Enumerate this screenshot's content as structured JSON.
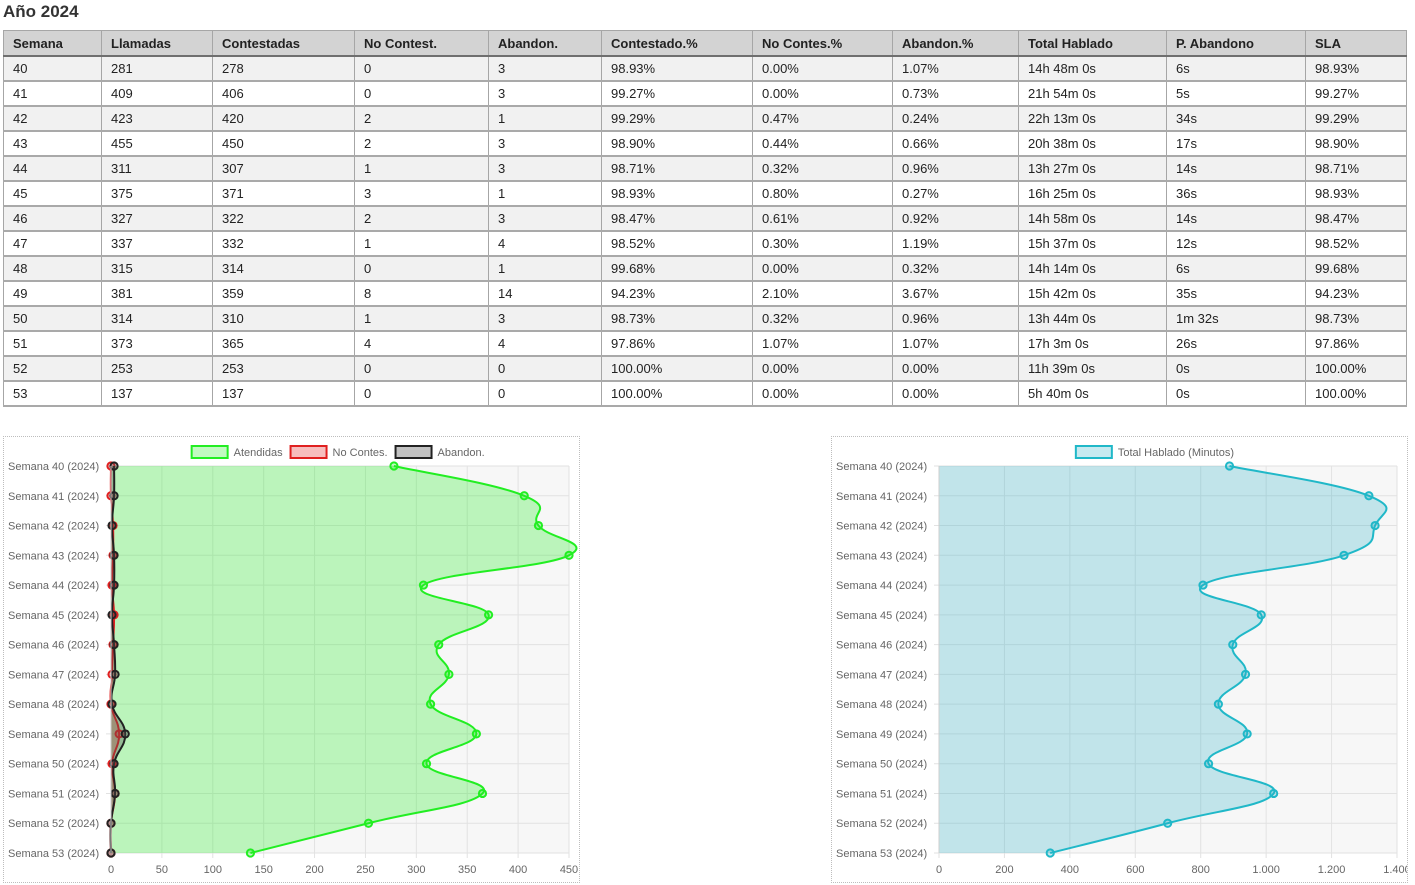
{
  "title": "Año 2024",
  "table": {
    "headers": [
      "Semana",
      "Llamadas",
      "Contestadas",
      "No Contest.",
      "Abandon.",
      "Contestado.%",
      "No Contes.%",
      "Abandon.%",
      "Total Hablado",
      "P. Abandono",
      "SLA"
    ],
    "rows": [
      [
        "40",
        "281",
        "278",
        "0",
        "3",
        "98.93%",
        "0.00%",
        "1.07%",
        "14h 48m 0s",
        "6s",
        "98.93%"
      ],
      [
        "41",
        "409",
        "406",
        "0",
        "3",
        "99.27%",
        "0.00%",
        "0.73%",
        "21h 54m 0s",
        "5s",
        "99.27%"
      ],
      [
        "42",
        "423",
        "420",
        "2",
        "1",
        "99.29%",
        "0.47%",
        "0.24%",
        "22h 13m 0s",
        "34s",
        "99.29%"
      ],
      [
        "43",
        "455",
        "450",
        "2",
        "3",
        "98.90%",
        "0.44%",
        "0.66%",
        "20h 38m 0s",
        "17s",
        "98.90%"
      ],
      [
        "44",
        "311",
        "307",
        "1",
        "3",
        "98.71%",
        "0.32%",
        "0.96%",
        "13h 27m 0s",
        "14s",
        "98.71%"
      ],
      [
        "45",
        "375",
        "371",
        "3",
        "1",
        "98.93%",
        "0.80%",
        "0.27%",
        "16h 25m 0s",
        "36s",
        "98.93%"
      ],
      [
        "46",
        "327",
        "322",
        "2",
        "3",
        "98.47%",
        "0.61%",
        "0.92%",
        "14h 58m 0s",
        "14s",
        "98.47%"
      ],
      [
        "47",
        "337",
        "332",
        "1",
        "4",
        "98.52%",
        "0.30%",
        "1.19%",
        "15h 37m 0s",
        "12s",
        "98.52%"
      ],
      [
        "48",
        "315",
        "314",
        "0",
        "1",
        "99.68%",
        "0.00%",
        "0.32%",
        "14h 14m 0s",
        "6s",
        "99.68%"
      ],
      [
        "49",
        "381",
        "359",
        "8",
        "14",
        "94.23%",
        "2.10%",
        "3.67%",
        "15h 42m 0s",
        "35s",
        "94.23%"
      ],
      [
        "50",
        "314",
        "310",
        "1",
        "3",
        "98.73%",
        "0.32%",
        "0.96%",
        "13h 44m 0s",
        "1m 32s",
        "98.73%"
      ],
      [
        "51",
        "373",
        "365",
        "4",
        "4",
        "97.86%",
        "1.07%",
        "1.07%",
        "17h 3m 0s",
        "26s",
        "97.86%"
      ],
      [
        "52",
        "253",
        "253",
        "0",
        "0",
        "100.00%",
        "0.00%",
        "0.00%",
        "11h 39m 0s",
        "0s",
        "100.00%"
      ],
      [
        "53",
        "137",
        "137",
        "0",
        "0",
        "100.00%",
        "0.00%",
        "0.00%",
        "5h 40m 0s",
        "0s",
        "100.00%"
      ]
    ]
  },
  "chart_data": [
    {
      "type": "area",
      "orientation": "horizontal",
      "categories": [
        "Semana 40 (2024)",
        "Semana 41 (2024)",
        "Semana 42 (2024)",
        "Semana 43 (2024)",
        "Semana 44 (2024)",
        "Semana 45 (2024)",
        "Semana 46 (2024)",
        "Semana 47 (2024)",
        "Semana 48 (2024)",
        "Semana 49 (2024)",
        "Semana 50 (2024)",
        "Semana 51 (2024)",
        "Semana 52 (2024)",
        "Semana 53 (2024)"
      ],
      "series": [
        {
          "name": "Atendidas",
          "values": [
            278,
            406,
            420,
            450,
            307,
            371,
            322,
            332,
            314,
            359,
            310,
            365,
            253,
            137
          ],
          "color": "#22ee22",
          "fill": "rgba(34,238,34,0.28)"
        },
        {
          "name": "No Contes.",
          "values": [
            0,
            0,
            2,
            2,
            1,
            3,
            2,
            1,
            0,
            8,
            1,
            4,
            0,
            0
          ],
          "color": "#e02020",
          "fill": "rgba(230,40,40,0.3)"
        },
        {
          "name": "Abandon.",
          "values": [
            3,
            3,
            1,
            3,
            3,
            1,
            3,
            4,
            1,
            14,
            3,
            4,
            0,
            0
          ],
          "color": "#222222",
          "fill": "rgba(80,80,80,0.35)"
        }
      ],
      "xlim": [
        0,
        450
      ],
      "xticks": [
        "0",
        "50",
        "100",
        "150",
        "200",
        "250",
        "300",
        "350",
        "400",
        "450"
      ],
      "tickStep": 50,
      "grid": true,
      "legend": "top"
    },
    {
      "type": "area",
      "orientation": "horizontal",
      "categories": [
        "Semana 40 (2024)",
        "Semana 41 (2024)",
        "Semana 42 (2024)",
        "Semana 43 (2024)",
        "Semana 44 (2024)",
        "Semana 45 (2024)",
        "Semana 46 (2024)",
        "Semana 47 (2024)",
        "Semana 48 (2024)",
        "Semana 49 (2024)",
        "Semana 50 (2024)",
        "Semana 51 (2024)",
        "Semana 52 (2024)",
        "Semana 53 (2024)"
      ],
      "series": [
        {
          "name": "Total Hablado (Minutos)",
          "values": [
            888,
            1314,
            1333,
            1238,
            807,
            985,
            898,
            937,
            854,
            942,
            824,
            1023,
            699,
            340
          ],
          "color": "#20b8c8",
          "fill": "rgba(32,170,195,0.25)"
        }
      ],
      "xlim": [
        0,
        1400
      ],
      "xticks": [
        "0",
        "200",
        "400",
        "600",
        "800",
        "1.000",
        "1.200",
        "1.400"
      ],
      "tickStep": 200,
      "grid": true,
      "legend": "top"
    }
  ]
}
